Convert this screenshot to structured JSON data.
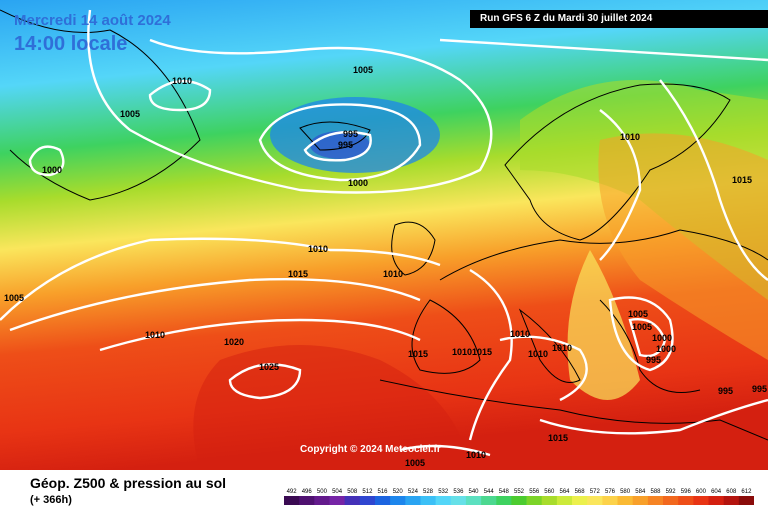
{
  "header": {
    "date": "Mercredi 14 août 2024",
    "time": "14:00 locale",
    "run": "Run GFS 6 Z du Mardi 30 juillet 2024"
  },
  "copyright": "Copyright © 2024 Meteociel.fr",
  "footer": {
    "title": "Géop. Z500 & pression au sol",
    "horizon": "(+ 366h)"
  },
  "legend": {
    "labels": [
      "492",
      "496",
      "500",
      "504",
      "508",
      "512",
      "516",
      "520",
      "524",
      "528",
      "532",
      "536",
      "540",
      "544",
      "548",
      "552",
      "556",
      "560",
      "564",
      "568",
      "572",
      "576",
      "580",
      "584",
      "588",
      "592",
      "596",
      "600",
      "604",
      "608",
      "612"
    ],
    "colors": [
      "#3a0a52",
      "#4f1170",
      "#631a8c",
      "#7624a6",
      "#4431b8",
      "#2f46d0",
      "#1c64e0",
      "#1d86ec",
      "#2aa4f2",
      "#3cc0f6",
      "#54d6f8",
      "#66e0e8",
      "#5ce0c0",
      "#4cd890",
      "#3ed260",
      "#4ccc30",
      "#7cd428",
      "#a8dc2c",
      "#ccea3a",
      "#ecf04c",
      "#fae65c",
      "#fcd24a",
      "#faba34",
      "#f8a02a",
      "#f68424",
      "#f2681e",
      "#ee4e18",
      "#e83414",
      "#d42010",
      "#b4140e",
      "#8a0c0a"
    ]
  },
  "isobars": [
    "1010",
    "1005",
    "1000",
    "995",
    "995",
    "1005",
    "1000",
    "1010",
    "1015",
    "1010",
    "1010",
    "1005",
    "1010",
    "1020",
    "1025",
    "1015",
    "1015",
    "1010",
    "1010",
    "1010",
    "1005",
    "1005",
    "1000",
    "1000",
    "995",
    "995",
    "995",
    "1010",
    "1015",
    "1005",
    "1015",
    "1010"
  ],
  "colors": {
    "isobar": "#ffffff",
    "land_outline": "#000000",
    "title_blue": "#2f6fd8"
  }
}
